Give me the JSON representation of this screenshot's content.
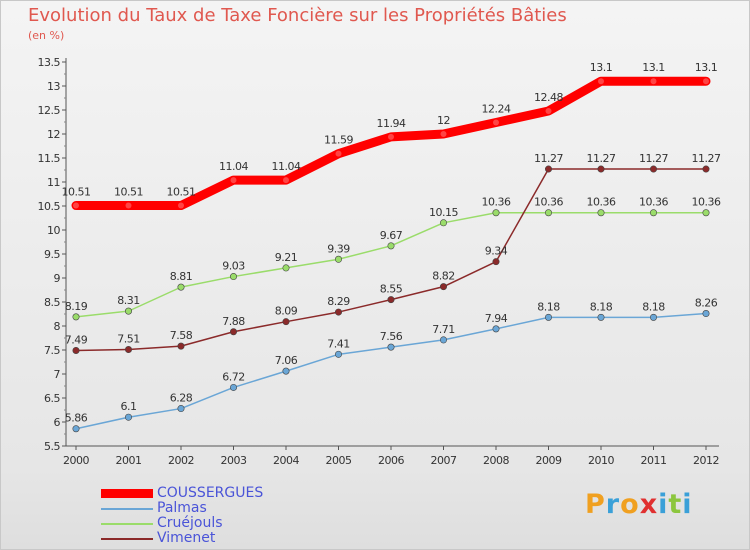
{
  "header": {
    "title": "Evolution du Taux de Taxe Foncière sur les Propriétés Bâties",
    "unit": "(en %)"
  },
  "brand": {
    "letters": [
      "P",
      "r",
      "o",
      "x",
      "i",
      "t",
      "i"
    ],
    "colors": [
      "#f0a020",
      "#3aa0d8",
      "#f0a020",
      "#e03030",
      "#3aa0d8",
      "#8cc63e",
      "#3aa0d8"
    ]
  },
  "chart_data": {
    "type": "line",
    "title": "Evolution du Taux de Taxe Foncière sur les Propriétés Bâties",
    "ylabel": "(en %)",
    "xlabel": "",
    "x": [
      "2000",
      "2001",
      "2002",
      "2003",
      "2004",
      "2005",
      "2006",
      "2007",
      "2008",
      "2009",
      "2010",
      "2011",
      "2012"
    ],
    "ylim": [
      5.5,
      13.5
    ],
    "yticks": [
      "5.5",
      "6",
      "6.5",
      "7",
      "7.5",
      "8",
      "8.5",
      "9",
      "9.5",
      "10",
      "10.5",
      "11",
      "11.5",
      "12",
      "12.5",
      "13",
      "13.5"
    ],
    "grid": false,
    "legend": "bottom-left",
    "series": [
      {
        "name": "COUSSERGUES",
        "color": "#ff0000",
        "values": [
          10.51,
          10.51,
          10.51,
          11.04,
          11.04,
          11.59,
          11.94,
          12,
          12.24,
          12.48,
          13.1,
          13.1,
          13.1
        ],
        "labels": [
          "10.51",
          "10.51",
          "10.51",
          "11.04",
          "11.04",
          "11.59",
          "11.94",
          "12",
          "12.24",
          "12.48",
          "13.1",
          "13.1",
          "13.1"
        ]
      },
      {
        "name": "Palmas",
        "color": "#6aa6d6",
        "values": [
          5.86,
          6.1,
          6.28,
          6.72,
          7.06,
          7.41,
          7.56,
          7.71,
          7.94,
          8.18,
          8.18,
          8.18,
          8.26
        ],
        "labels": [
          "5.86",
          "6.1",
          "6.28",
          "6.72",
          "7.06",
          "7.41",
          "7.56",
          "7.71",
          "7.94",
          "8.18",
          "8.18",
          "8.18",
          "8.26"
        ]
      },
      {
        "name": "Cruéjouls",
        "color": "#9adc6a",
        "values": [
          8.19,
          8.31,
          8.81,
          9.03,
          9.21,
          9.39,
          9.67,
          10.15,
          10.36,
          10.36,
          10.36,
          10.36,
          10.36
        ],
        "labels": [
          "8.19",
          "8.31",
          "8.81",
          "9.03",
          "9.21",
          "9.39",
          "9.67",
          "10.15",
          "10.36",
          "10.36",
          "10.36",
          "10.36",
          "10.36"
        ]
      },
      {
        "name": "Vimenet",
        "color": "#8b2a2a",
        "values": [
          7.49,
          7.51,
          7.58,
          7.88,
          8.09,
          8.29,
          8.55,
          8.82,
          9.34,
          11.27,
          11.27,
          11.27,
          11.27
        ],
        "labels": [
          "7.49",
          "7.51",
          "7.58",
          "7.88",
          "8.09",
          "8.29",
          "8.55",
          "8.82",
          "9.34",
          "11.27",
          "11.27",
          "11.27",
          "11.27"
        ]
      }
    ]
  }
}
